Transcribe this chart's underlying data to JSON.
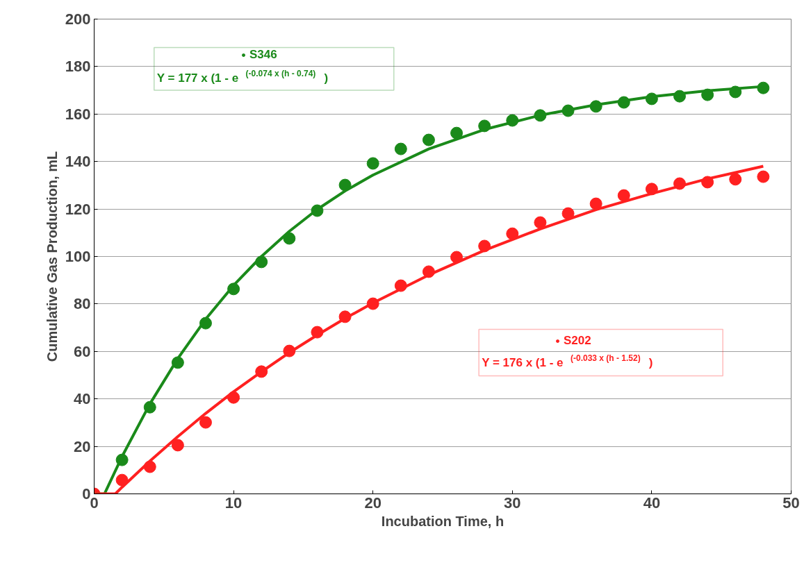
{
  "chart_data": {
    "type": "scatter",
    "xlabel": "Incubation Time, h",
    "ylabel": "Cumulative Gas Production, mL",
    "xlim": [
      0,
      50
    ],
    "ylim": [
      0,
      200
    ],
    "xticks": [
      0,
      10,
      20,
      30,
      40,
      50
    ],
    "yticks": [
      0,
      20,
      40,
      60,
      80,
      100,
      120,
      140,
      160,
      180,
      200
    ],
    "grid": "y",
    "marker": "circle",
    "legend": "top left",
    "annotations": [
      "Y = 177 x (1 - e$^{(-0.074 x (h - 0.74)}$ )",
      "Y = 176 x (1 - e$^{(-0.033 x (h - 1.52)}$ )"
    ],
    "x": [
      0,
      2,
      4,
      6,
      8,
      10,
      12,
      14,
      16,
      18,
      20,
      22,
      24,
      26,
      28,
      30,
      32,
      34,
      36,
      38,
      40,
      42,
      44,
      46,
      48
    ],
    "series": [
      {
        "name": "S346",
        "color": "#1a8a1a",
        "values": [
          null,
          14.3,
          36.5,
          55.3,
          71.9,
          86.3,
          97.7,
          107.6,
          119.3,
          130.1,
          139.2,
          145.3,
          149.1,
          152,
          155,
          157.3,
          159.4,
          161.4,
          163.2,
          164.9,
          166.4,
          167.5,
          168.1,
          169.3,
          171
        ]
      },
      {
        "name": "S202",
        "color": "#ff2020",
        "values": [
          0,
          5.8,
          11.4,
          20.5,
          30.1,
          40.6,
          51.5,
          60.2,
          68.1,
          74.6,
          80.1,
          87.7,
          93.6,
          99.7,
          104.4,
          109.6,
          114.3,
          118.1,
          122.2,
          125.7,
          128.4,
          130.7,
          131.3,
          132.5,
          133.6
        ]
      },
      {
        "type": "line",
        "marker": "none",
        "color": "#1a8a1a",
        "x": [
          0,
          0.74,
          2,
          4,
          6,
          8,
          10,
          12,
          14,
          16,
          18,
          20,
          24,
          28,
          32,
          36,
          40,
          44,
          48
        ],
        "values": [
          0,
          0,
          15.7,
          37.9,
          57.0,
          73.6,
          87.8,
          100.0,
          110.6,
          119.8,
          127.6,
          134.3,
          145.3,
          153.5,
          159.5,
          163.9,
          167.3,
          169.8,
          171.6
        ]
      },
      {
        "type": "line",
        "marker": "none",
        "color": "#ff2020",
        "x": [
          0,
          1.52,
          2,
          4,
          6,
          8,
          10,
          12,
          14,
          16,
          18,
          20,
          24,
          28,
          32,
          36,
          40,
          44,
          48
        ],
        "values": [
          0,
          0,
          2.8,
          13.8,
          24.1,
          33.9,
          43.0,
          51.4,
          59.5,
          66.9,
          73.9,
          80.4,
          92.2,
          102.6,
          111.6,
          119.7,
          126.5,
          132.7,
          138.0
        ]
      }
    ]
  }
}
